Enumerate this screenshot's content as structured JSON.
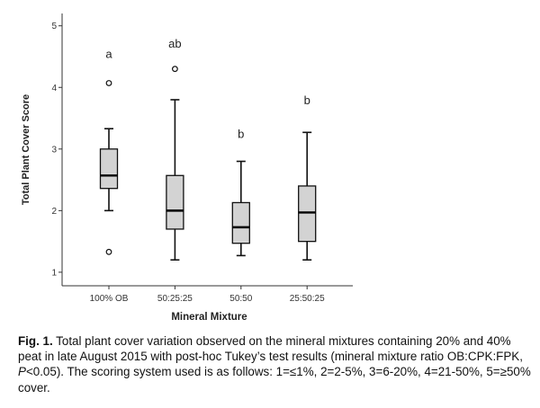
{
  "chart_data": {
    "type": "box",
    "xlabel": "Mineral Mixture",
    "ylabel": "Total Plant Cover Score",
    "ylim": [
      0.78,
      5.2
    ],
    "yticks": [
      1,
      2,
      3,
      4,
      5
    ],
    "grid": false,
    "box_fill": "#d3d3d3",
    "categories": [
      "100% OB",
      "50:25:25",
      "50:50",
      "25:50:25"
    ],
    "boxes": [
      {
        "whisker_low": 2.0,
        "q1": 2.36,
        "median": 2.57,
        "q3": 3.0,
        "whisker_high": 3.33,
        "outliers": [
          4.07,
          1.33
        ],
        "letter": "a",
        "letter_y": 4.55
      },
      {
        "whisker_low": 1.2,
        "q1": 1.7,
        "median": 2.0,
        "q3": 2.57,
        "whisker_high": 3.8,
        "outliers": [
          4.3
        ],
        "letter": "ab",
        "letter_y": 4.72
      },
      {
        "whisker_low": 1.27,
        "q1": 1.47,
        "median": 1.73,
        "q3": 2.13,
        "whisker_high": 2.8,
        "outliers": [],
        "letter": "b",
        "letter_y": 3.25
      },
      {
        "whisker_low": 1.2,
        "q1": 1.5,
        "median": 1.97,
        "q3": 2.4,
        "whisker_high": 3.27,
        "outliers": [],
        "letter": "b",
        "letter_y": 3.8
      }
    ]
  },
  "caption": {
    "label": "Fig. 1.",
    "text_1": " Total plant cover variation observed on the mineral mixtures containing 20% and 40% peat in late August 2015 with post-hoc Tukey’s test results (mineral mixture ratio OB:CPK:FPK, ",
    "p_italic": "P",
    "text_2": "<0.05). The scoring system used is as follows: 1=≤1%, 2=2-5%, 3=6-20%, 4=21-50%, 5=≥50% cover."
  }
}
